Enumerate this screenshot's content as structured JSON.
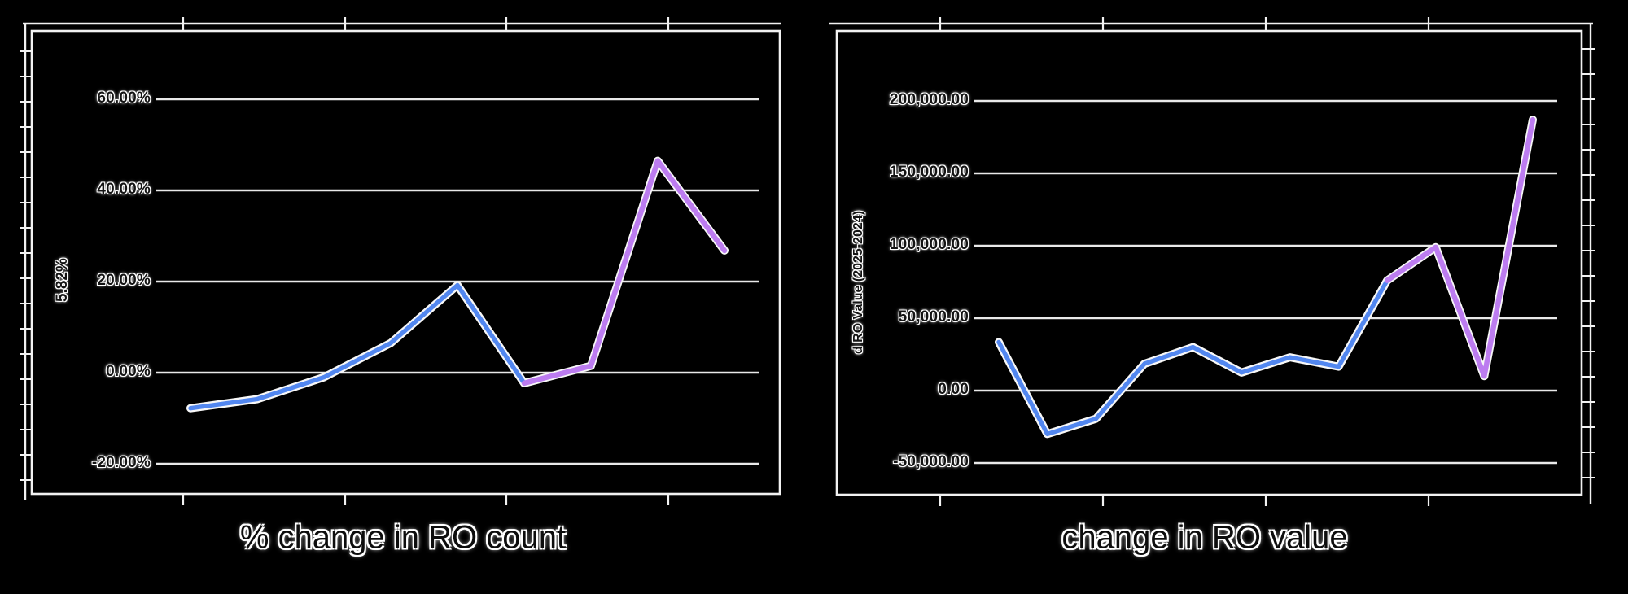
{
  "style": {
    "background": "#000000",
    "grid_color": "#e9e9e9",
    "frame_color": "#f2f2f2",
    "halo_color": "#f7f7f7",
    "text_color": "#141414",
    "text_outline": "#ffffff"
  },
  "chart_data": [
    {
      "type": "line",
      "title": "% change in RO count",
      "xlabel": "",
      "ylabel": "5.82%",
      "x": [
        1,
        2,
        3,
        4,
        5,
        6,
        7,
        8,
        9
      ],
      "x_tick_labels": [],
      "y_ticks": [
        {
          "label": "60.00%",
          "value": 60
        },
        {
          "label": "40.00%",
          "value": 40
        },
        {
          "label": "20.00%",
          "value": 20
        },
        {
          "label": "0.00%",
          "value": 0
        },
        {
          "label": "-20.00%",
          "value": -20
        }
      ],
      "ylim": [
        -20,
        60
      ],
      "grid": "horizontal",
      "legend": "none",
      "series": [
        {
          "name": "% change in RO count",
          "values": [
            -7.8,
            -5.8,
            -1.0,
            6.5,
            19.2,
            -2.3,
            1.5,
            46.5,
            26.8
          ],
          "segments": [
            {
              "start_index": 0,
              "end_index": 5,
              "color": "#5287f0"
            },
            {
              "start_index": 5,
              "end_index": 8,
              "color": "#bc7cf0"
            }
          ]
        }
      ]
    },
    {
      "type": "line",
      "title": "change in RO value",
      "xlabel": "",
      "ylabel": "d RO Value (2025-2024)",
      "x": [
        1,
        2,
        3,
        4,
        5,
        6,
        7,
        8,
        9,
        10,
        11,
        12
      ],
      "x_tick_labels": [],
      "y_ticks": [
        {
          "label": "200,000.00",
          "value": 200000
        },
        {
          "label": "150,000.00",
          "value": 150000
        },
        {
          "label": "100,000.00",
          "value": 100000
        },
        {
          "label": "50,000.00",
          "value": 50000
        },
        {
          "label": "0.00",
          "value": 0
        },
        {
          "label": "-50,000.00",
          "value": -50000
        }
      ],
      "ylim": [
        -50000,
        200000
      ],
      "grid": "horizontal",
      "legend": "none",
      "series": [
        {
          "name": "change in RO value",
          "values": [
            33500,
            -30000,
            -19500,
            18500,
            30000,
            12500,
            23000,
            16500,
            76000,
            99000,
            10000,
            187000
          ],
          "segments": [
            {
              "start_index": 0,
              "end_index": 8,
              "color": "#5287f0"
            },
            {
              "start_index": 8,
              "end_index": 11,
              "color": "#bc7cf0"
            }
          ]
        }
      ]
    }
  ]
}
